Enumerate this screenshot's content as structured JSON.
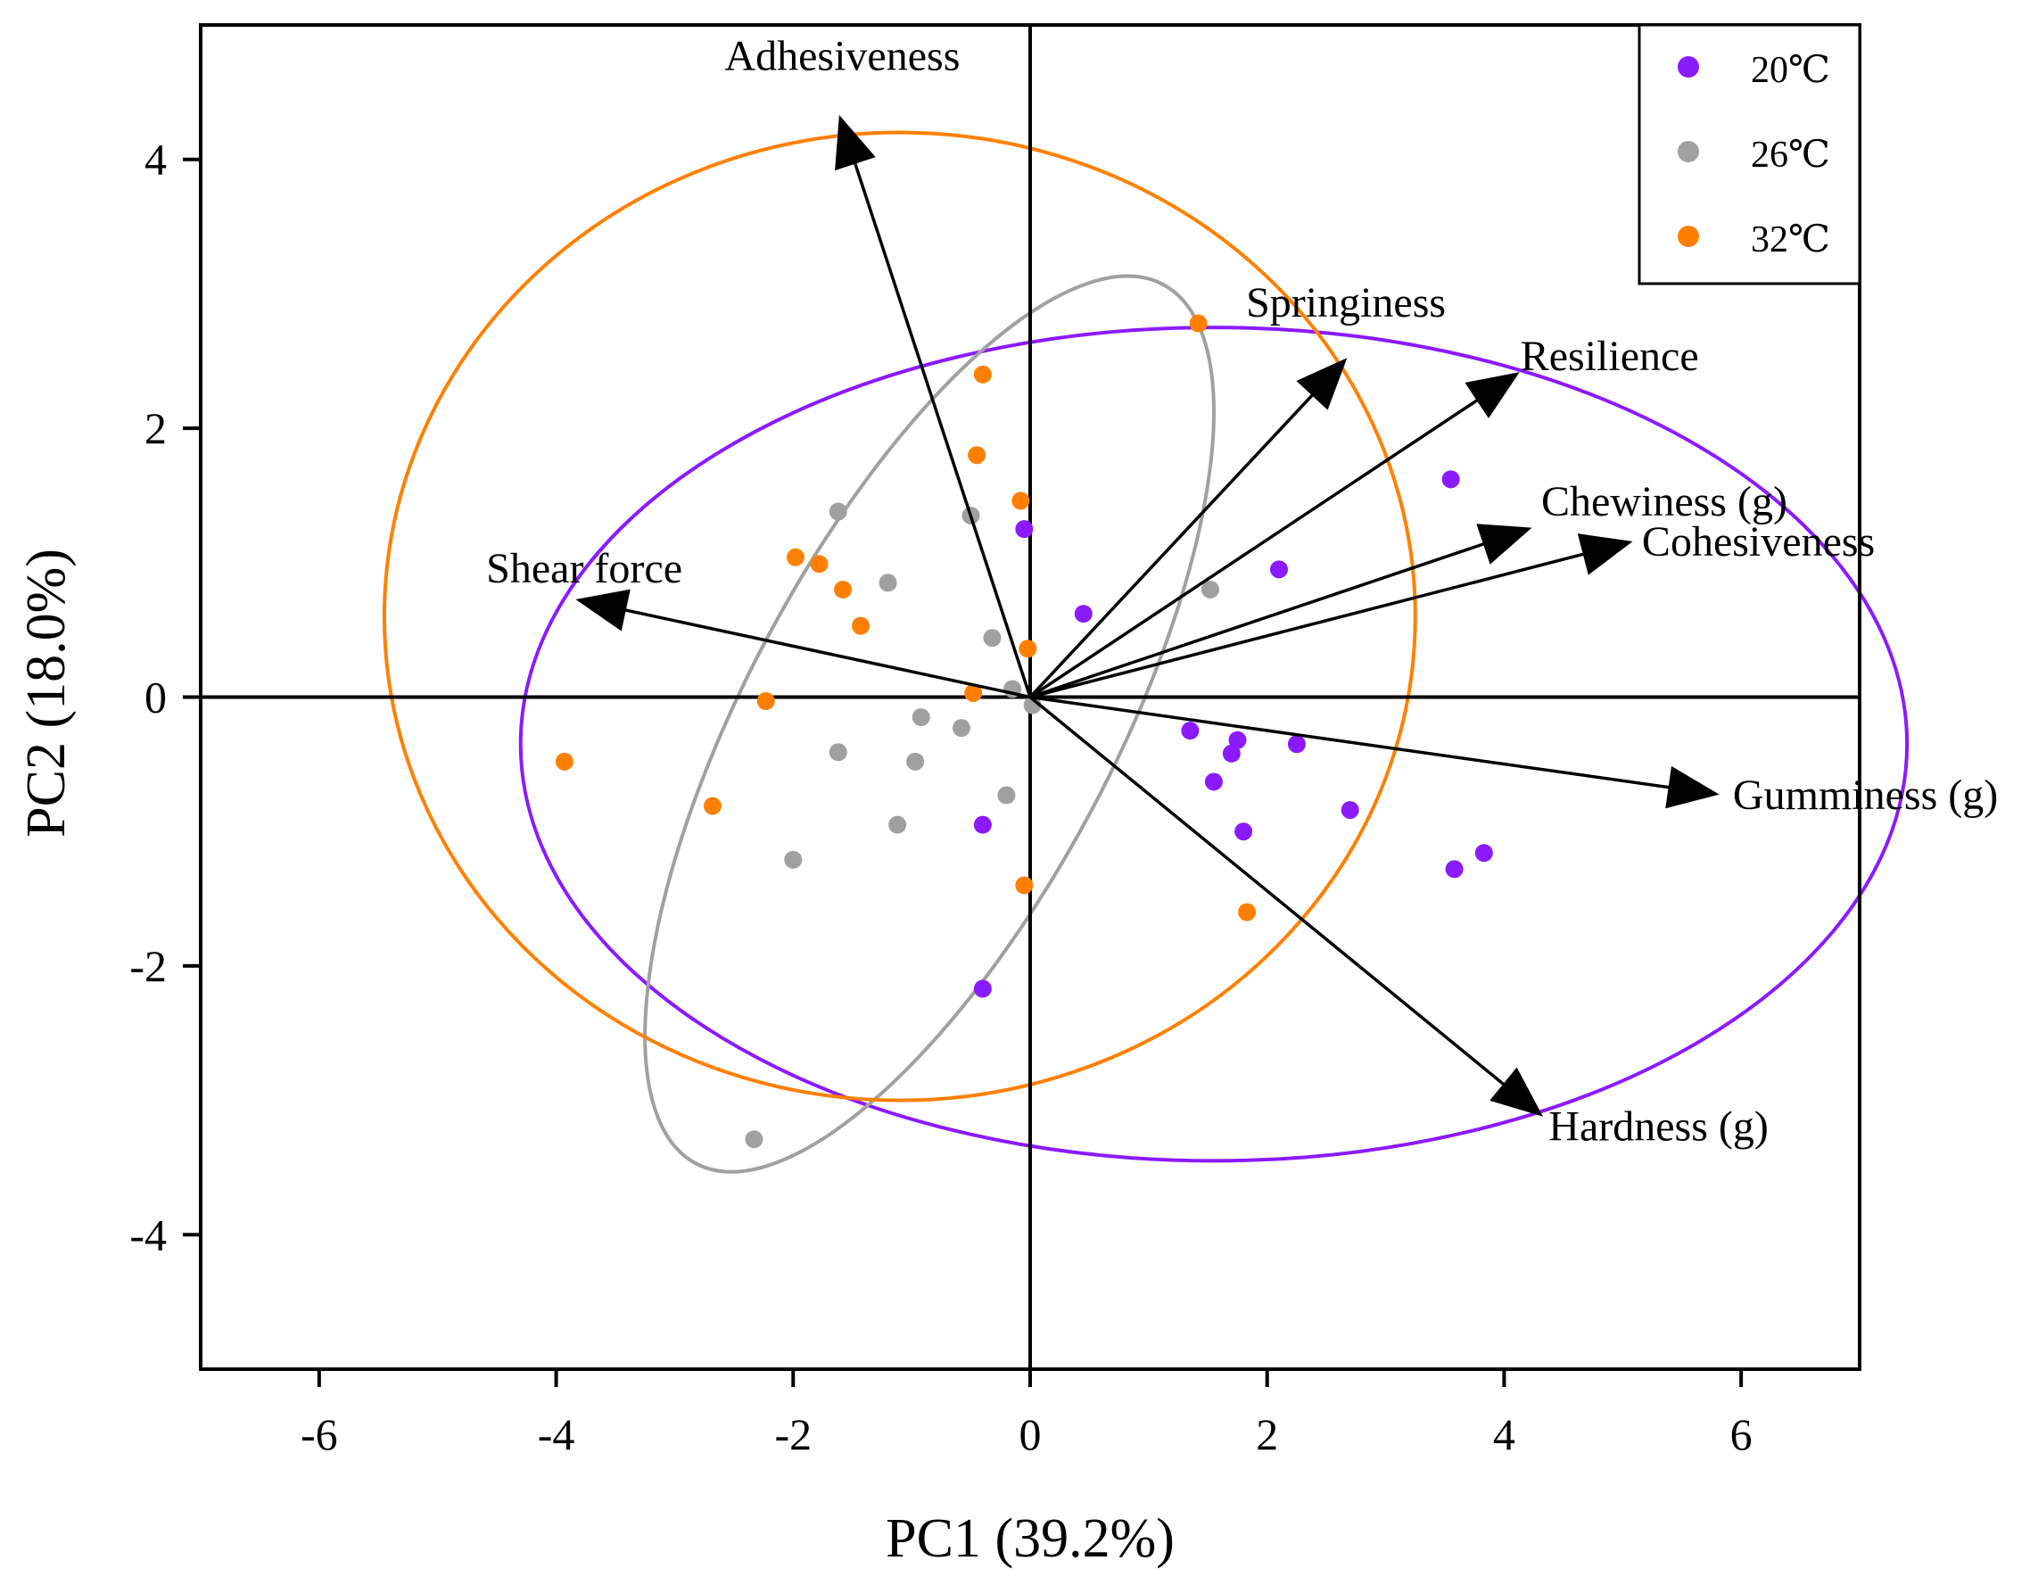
{
  "chart_data": {
    "type": "scatter",
    "subtype": "pca-biplot",
    "title": "",
    "xlabel": "PC1 (39.2%)",
    "ylabel": "PC2 (18.0%)",
    "xlim": [
      -7,
      7
    ],
    "ylim": [
      -5,
      5
    ],
    "xticks": [
      -6,
      -4,
      -2,
      0,
      2,
      4,
      6
    ],
    "xtick_labels": [
      "-6",
      "-4",
      "-2",
      "0",
      "2",
      "4",
      "6"
    ],
    "yticks": [
      -4,
      -2,
      0,
      2,
      4
    ],
    "ytick_labels": [
      "-4",
      "-2",
      "0",
      "2",
      "4"
    ],
    "grid": false,
    "legend_position": "top-right",
    "series": [
      {
        "name": "20℃",
        "color": "#8b1aff",
        "points": [
          [
            -0.05,
            1.25
          ],
          [
            0.45,
            0.62
          ],
          [
            2.1,
            0.95
          ],
          [
            3.55,
            1.62
          ],
          [
            1.35,
            -0.25
          ],
          [
            1.55,
            -0.63
          ],
          [
            1.7,
            -0.42
          ],
          [
            1.75,
            -0.32
          ],
          [
            1.8,
            -1.0
          ],
          [
            2.25,
            -0.35
          ],
          [
            2.7,
            -0.84
          ],
          [
            3.58,
            -1.28
          ],
          [
            3.83,
            -1.16
          ],
          [
            -0.4,
            -0.95
          ],
          [
            -0.4,
            -2.17
          ]
        ],
        "ellipse": {
          "center": [
            1.55,
            -0.35
          ],
          "semi_axes": [
            5.85,
            3.1
          ],
          "angle_deg": 0
        }
      },
      {
        "name": "26℃",
        "color": "#a0a0a0",
        "points": [
          [
            -1.62,
            1.38
          ],
          [
            -0.5,
            1.35
          ],
          [
            -1.2,
            0.85
          ],
          [
            -0.32,
            0.44
          ],
          [
            -0.15,
            0.06
          ],
          [
            0.02,
            -0.06
          ],
          [
            -0.92,
            -0.15
          ],
          [
            -0.58,
            -0.23
          ],
          [
            -1.62,
            -0.41
          ],
          [
            -0.97,
            -0.48
          ],
          [
            -0.2,
            -0.73
          ],
          [
            -1.12,
            -0.95
          ],
          [
            -2.0,
            -1.21
          ],
          [
            1.52,
            0.8
          ],
          [
            -2.33,
            -3.29
          ]
        ],
        "ellipse": {
          "center": [
            -0.85,
            -0.2
          ],
          "semi_axes": [
            4.2,
            1.55
          ],
          "angle_deg": 62
        }
      },
      {
        "name": "32℃",
        "color": "#ff8000",
        "points": [
          [
            1.42,
            2.78
          ],
          [
            -0.4,
            2.4
          ],
          [
            -0.45,
            1.8
          ],
          [
            -0.08,
            1.46
          ],
          [
            -1.98,
            1.04
          ],
          [
            -1.78,
            0.99
          ],
          [
            -1.58,
            0.8
          ],
          [
            -1.43,
            0.53
          ],
          [
            -0.02,
            0.36
          ],
          [
            -0.48,
            0.03
          ],
          [
            -2.23,
            -0.03
          ],
          [
            -3.93,
            -0.48
          ],
          [
            -2.68,
            -0.81
          ],
          [
            -0.05,
            -1.4
          ],
          [
            1.83,
            -1.6
          ]
        ],
        "ellipse": {
          "center": [
            -1.1,
            0.6
          ],
          "semi_axes": [
            4.35,
            3.6
          ],
          "angle_deg": 0
        }
      }
    ],
    "loadings": [
      {
        "label": "Adhesiveness",
        "x": -1.6,
        "y": 4.3
      },
      {
        "label": "Springiness",
        "x": 2.65,
        "y": 2.5
      },
      {
        "label": "Resilience",
        "x": 4.1,
        "y": 2.4
      },
      {
        "label": "Chewiness (g)",
        "x": 4.2,
        "y": 1.25
      },
      {
        "label": "Cohesiveness",
        "x": 5.05,
        "y": 1.15
      },
      {
        "label": "Shear force",
        "x": -3.8,
        "y": 0.72
      },
      {
        "label": "Gumminess (g)",
        "x": 5.78,
        "y": -0.72
      },
      {
        "label": "Hardness (g)",
        "x": 4.3,
        "y": -3.1
      }
    ],
    "colors": {
      "axis": "#000000",
      "arrow": "#000000"
    }
  }
}
